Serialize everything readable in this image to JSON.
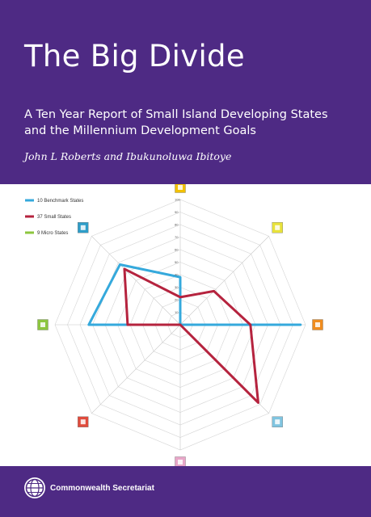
{
  "cover": {
    "title": "The Big Divide",
    "subtitle_line1": "A Ten Year Report of Small Island Developing States",
    "subtitle_line2": "and the Millennium Development Goals",
    "authors": "John L Roberts and Ibukunoluwa Ibitoye",
    "publisher": "Commonwealth Secretariat",
    "band_color": "#4e2a84"
  },
  "chart_data": {
    "type": "radar",
    "axis_count": 8,
    "range": [
      0,
      100
    ],
    "ticks": [
      "10",
      "20",
      "30",
      "40",
      "50",
      "60",
      "70",
      "80",
      "90",
      "100"
    ],
    "legend_placement": "top-left",
    "axis_icons": [
      {
        "icon": "mdg-goal-1-icon",
        "color": "#f2c100"
      },
      {
        "icon": "mdg-goal-2-icon",
        "color": "#e8e23a"
      },
      {
        "icon": "mdg-goal-3-icon",
        "color": "#f08c1e"
      },
      {
        "icon": "mdg-goal-4-icon",
        "color": "#7fc4e0"
      },
      {
        "icon": "mdg-goal-5-icon",
        "color": "#e8a6c8"
      },
      {
        "icon": "mdg-goal-6-icon",
        "color": "#e04b3c"
      },
      {
        "icon": "mdg-goal-7-icon",
        "color": "#8cc63e"
      },
      {
        "icon": "mdg-goal-8-icon",
        "color": "#2e9dc8"
      }
    ],
    "series": [
      {
        "name": "10 Benchmark States",
        "color": "#35a9dc",
        "values": [
          38,
          0,
          96,
          0,
          0,
          0,
          73,
          68
        ]
      },
      {
        "name": "37 Small States",
        "color": "#b5233e",
        "values": [
          22,
          38,
          56,
          88,
          0,
          0,
          42,
          63
        ]
      },
      {
        "name": "9 Micro States",
        "color": "#8cc63e",
        "values": [
          0,
          0,
          0,
          0,
          0,
          0,
          0,
          0
        ]
      }
    ]
  }
}
